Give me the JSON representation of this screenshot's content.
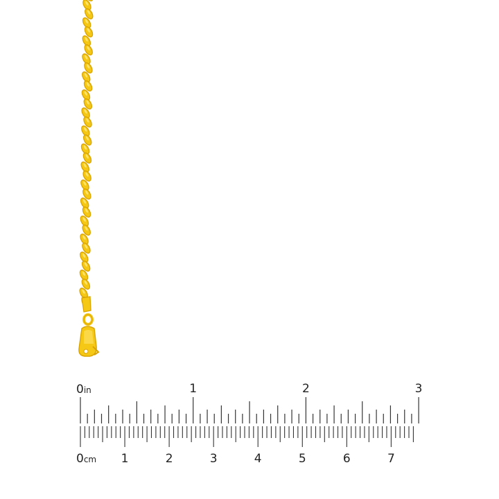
{
  "product": {
    "subject": "gold rope chain with lobster clasp",
    "colors": {
      "gold": "#f5c816",
      "gold_dark": "#d9a300",
      "gold_light": "#ffe36a",
      "ruler_ink": "#333333"
    }
  },
  "ruler": {
    "inch_labels": [
      "0",
      "1",
      "2",
      "3"
    ],
    "inch_unit": "in",
    "cm_labels": [
      "0",
      "1",
      "2",
      "3",
      "4",
      "5",
      "6",
      "7"
    ],
    "cm_unit": "cm",
    "inch_subdivisions": 16,
    "cm_subdivisions": 10,
    "length_in": 3,
    "length_mm": 75
  }
}
